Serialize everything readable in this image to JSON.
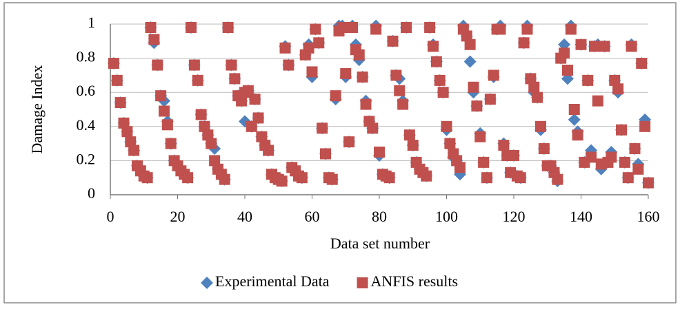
{
  "chart_data": {
    "type": "scatter",
    "xlabel": "Data set number",
    "ylabel": "Damage Index",
    "xlim": [
      0,
      160
    ],
    "xticks": [
      0,
      20,
      40,
      60,
      80,
      100,
      120,
      140,
      160
    ],
    "ylim": [
      0,
      1
    ],
    "yticks": [
      0,
      0.2,
      0.4,
      0.6,
      0.8,
      1
    ],
    "grid": true,
    "legend": "bottom",
    "x": [
      1,
      2,
      3,
      4,
      5,
      6,
      7,
      8,
      9,
      10,
      11,
      12,
      13,
      14,
      15,
      16,
      17,
      18,
      19,
      20,
      21,
      22,
      23,
      24,
      25,
      26,
      27,
      28,
      29,
      30,
      31,
      32,
      33,
      34,
      35,
      36,
      37,
      38,
      39,
      40,
      41,
      42,
      43,
      44,
      45,
      46,
      47,
      48,
      49,
      50,
      51,
      52,
      53,
      54,
      55,
      56,
      57,
      58,
      59,
      60,
      61,
      62,
      63,
      64,
      65,
      66,
      67,
      68,
      69,
      70,
      71,
      72,
      73,
      74,
      75,
      76,
      77,
      78,
      79,
      80,
      81,
      82,
      83,
      84,
      85,
      86,
      87,
      88,
      89,
      90,
      91,
      92,
      93,
      94,
      95,
      96,
      97,
      98,
      99,
      100,
      101,
      102,
      103,
      104,
      105,
      106,
      107,
      108,
      109,
      110,
      111,
      112,
      113,
      114,
      115,
      116,
      117,
      118,
      119,
      120,
      121,
      122,
      123,
      124,
      125,
      126,
      127,
      128,
      129,
      130,
      131,
      132,
      133,
      134,
      135,
      136,
      137,
      138,
      139,
      140,
      141,
      142,
      143,
      144,
      145,
      146,
      147,
      148,
      149,
      150,
      151,
      152,
      153,
      154,
      155,
      156,
      157,
      158,
      159,
      160
    ],
    "series": [
      {
        "name": "Experimental Data",
        "color": "#4f81bd",
        "marker": "diamond",
        "values": [
          0.77,
          0.67,
          0.54,
          0.42,
          0.37,
          0.31,
          0.26,
          0.17,
          0.14,
          0.11,
          0.1,
          0.98,
          0.89,
          0.76,
          0.58,
          0.55,
          0.43,
          0.3,
          0.2,
          0.17,
          0.14,
          0.12,
          0.1,
          0.98,
          0.76,
          0.67,
          0.47,
          0.4,
          0.35,
          0.3,
          0.27,
          0.15,
          0.12,
          0.09,
          0.98,
          0.76,
          0.68,
          0.58,
          0.55,
          0.43,
          0.61,
          0.4,
          0.56,
          0.45,
          0.34,
          0.29,
          0.26,
          0.12,
          0.1,
          0.09,
          0.08,
          0.87,
          0.76,
          0.16,
          0.14,
          0.11,
          0.1,
          0.82,
          0.88,
          0.69,
          0.97,
          0.89,
          0.39,
          0.24,
          0.1,
          0.09,
          0.56,
          0.99,
          0.99,
          0.69,
          0.31,
          0.99,
          0.88,
          0.79,
          0.69,
          0.55,
          0.43,
          0.39,
          0.99,
          0.23,
          0.12,
          0.11,
          0.1,
          0.9,
          0.7,
          0.68,
          0.55,
          0.98,
          0.35,
          0.29,
          0.19,
          0.15,
          0.13,
          0.11,
          0.98,
          0.88,
          0.78,
          0.67,
          0.6,
          0.38,
          0.3,
          0.22,
          0.2,
          0.12,
          0.99,
          0.93,
          0.78,
          0.6,
          0.52,
          0.36,
          0.19,
          0.1,
          0.56,
          0.69,
          0.97,
          0.99,
          0.3,
          0.23,
          0.13,
          0.23,
          0.11,
          0.1,
          0.89,
          0.99,
          0.68,
          0.6,
          0.57,
          0.38,
          0.27,
          0.17,
          0.17,
          0.13,
          0.08,
          0.8,
          0.88,
          0.68,
          0.99,
          0.44,
          0.37,
          0.88,
          0.19,
          0.67,
          0.26,
          0.87,
          0.88,
          0.15,
          0.87,
          0.19,
          0.25,
          0.67,
          0.6,
          0.38,
          0.19,
          0.1,
          0.88,
          0.27,
          0.18,
          0.77,
          0.44,
          0.07
        ]
      },
      {
        "name": "ANFIS results",
        "color": "#c0504d",
        "marker": "square",
        "values": [
          0.77,
          0.67,
          0.54,
          0.42,
          0.37,
          0.31,
          0.26,
          0.17,
          0.14,
          0.11,
          0.1,
          0.98,
          0.91,
          0.76,
          0.58,
          0.49,
          0.41,
          0.3,
          0.2,
          0.17,
          0.14,
          0.12,
          0.1,
          0.98,
          0.76,
          0.67,
          0.47,
          0.4,
          0.35,
          0.3,
          0.2,
          0.15,
          0.12,
          0.09,
          0.98,
          0.76,
          0.68,
          0.58,
          0.55,
          0.6,
          0.61,
          0.4,
          0.56,
          0.45,
          0.34,
          0.29,
          0.26,
          0.12,
          0.1,
          0.09,
          0.08,
          0.86,
          0.76,
          0.16,
          0.14,
          0.11,
          0.1,
          0.82,
          0.86,
          0.72,
          0.97,
          0.89,
          0.39,
          0.24,
          0.1,
          0.09,
          0.58,
          0.96,
          0.98,
          0.71,
          0.31,
          0.98,
          0.85,
          0.82,
          0.69,
          0.53,
          0.43,
          0.39,
          0.97,
          0.25,
          0.12,
          0.11,
          0.1,
          0.9,
          0.7,
          0.61,
          0.53,
          0.98,
          0.35,
          0.29,
          0.19,
          0.15,
          0.13,
          0.11,
          0.98,
          0.87,
          0.78,
          0.67,
          0.6,
          0.4,
          0.3,
          0.24,
          0.2,
          0.16,
          0.97,
          0.93,
          0.88,
          0.63,
          0.52,
          0.34,
          0.19,
          0.1,
          0.56,
          0.7,
          0.97,
          0.97,
          0.29,
          0.23,
          0.13,
          0.23,
          0.11,
          0.1,
          0.89,
          0.97,
          0.68,
          0.63,
          0.57,
          0.4,
          0.27,
          0.17,
          0.17,
          0.13,
          0.09,
          0.8,
          0.83,
          0.73,
          0.97,
          0.5,
          0.35,
          0.88,
          0.19,
          0.67,
          0.22,
          0.87,
          0.55,
          0.18,
          0.87,
          0.19,
          0.22,
          0.67,
          0.62,
          0.38,
          0.19,
          0.1,
          0.87,
          0.27,
          0.15,
          0.77,
          0.4,
          0.07
        ]
      }
    ]
  }
}
